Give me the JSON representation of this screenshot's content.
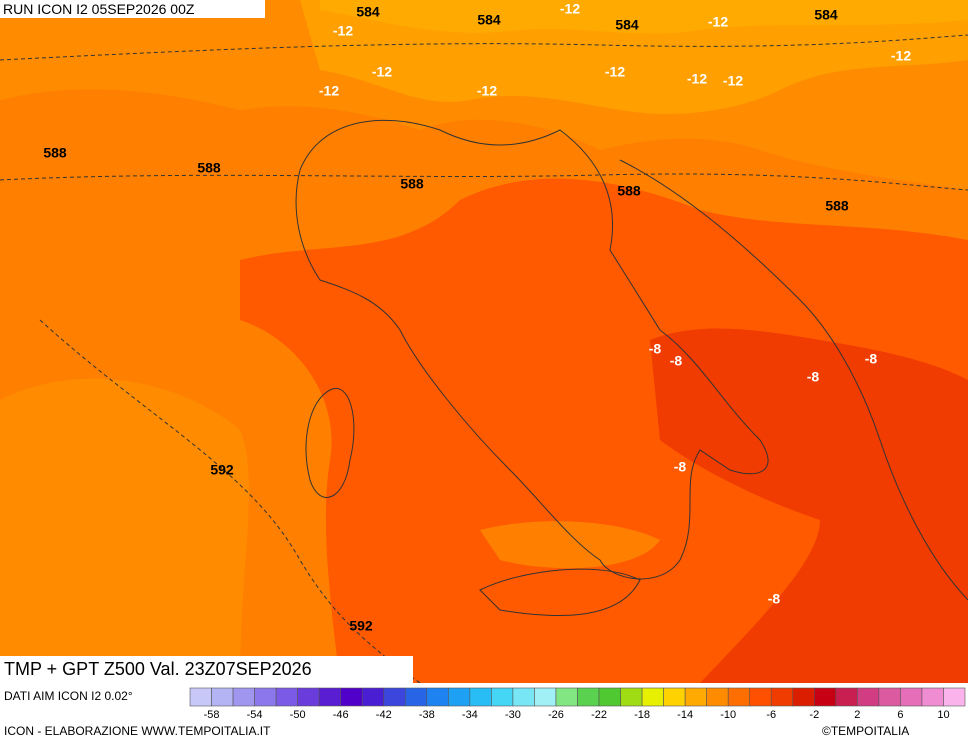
{
  "header": {
    "run": "RUN ICON I2 05SEP2026 00Z"
  },
  "map": {
    "title": "TMP + GPT Z500 Val. 23Z07SEP2026",
    "contour_labels": [
      584,
      584,
      584,
      584,
      -12,
      -12,
      -12,
      -12,
      -12,
      -12,
      -12,
      -12,
      -12,
      -12,
      588,
      588,
      588,
      588,
      588,
      592,
      592,
      -8,
      -8,
      -8,
      -8,
      -8,
      -8
    ]
  },
  "footer": {
    "source": "DATI AIM ICON I2 0.02°",
    "credit": "ICON - ELABORAZIONE WWW.TEMPOITALIA.IT",
    "copyright": "©TEMPOITALIA"
  },
  "colorbar": {
    "ticks": [
      -58,
      -54,
      -50,
      -46,
      -42,
      -38,
      -34,
      -30,
      -26,
      -22,
      -18,
      -14,
      -10,
      -6,
      -2,
      2,
      6,
      10
    ],
    "colors": [
      "#c8c8f8",
      "#b4b4f4",
      "#a096f0",
      "#8c78ec",
      "#7a5ae6",
      "#6a3cdc",
      "#5a1ed2",
      "#5000c8",
      "#4a1ed2",
      "#3c46dc",
      "#2864e6",
      "#1e82f0",
      "#1ea0f5",
      "#28bef5",
      "#46d6f5",
      "#78e6f5",
      "#a0f0f5",
      "#82e682",
      "#5ad250",
      "#50c832",
      "#a0dc14",
      "#e6f000",
      "#ffd200",
      "#ffaa00",
      "#ff8c00",
      "#ff6e00",
      "#ff5000",
      "#f03c00",
      "#dc1e00",
      "#c80014",
      "#c81e50",
      "#d23c82",
      "#dc5aa0",
      "#e66eb9",
      "#f08cd2",
      "#fab4eb"
    ]
  }
}
